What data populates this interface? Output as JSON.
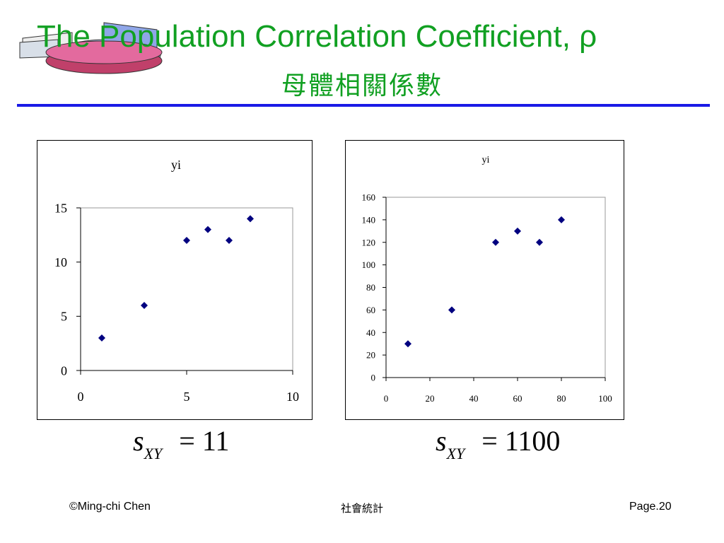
{
  "slide": {
    "title": "The Population Correlation Coefficient, ρ",
    "subtitle": "母體相關係數"
  },
  "formulas": {
    "left": {
      "symbol": "s",
      "subscript": "XY",
      "equals": "=",
      "value": "11"
    },
    "right": {
      "symbol": "s",
      "subscript": "XY",
      "equals": "=",
      "value": "1100"
    }
  },
  "footer": {
    "copyright": "©Ming-chi Chen",
    "course": "社會統計",
    "page": "Page.20"
  },
  "colors": {
    "title": "#11A022",
    "rule": "#1a1ae6",
    "marker": "#000080"
  },
  "chart_data": [
    {
      "type": "scatter",
      "title": "yi",
      "x": [
        1,
        3,
        5,
        6,
        7,
        8
      ],
      "y": [
        3,
        6,
        12,
        13,
        12,
        14
      ],
      "xlim": [
        0,
        10
      ],
      "ylim": [
        0,
        15
      ],
      "xticks": [
        0,
        5,
        10
      ],
      "yticks": [
        0,
        5,
        10,
        15
      ],
      "grid": false,
      "legend": "none"
    },
    {
      "type": "scatter",
      "title": "yi",
      "x": [
        10,
        30,
        50,
        60,
        70,
        80
      ],
      "y": [
        30,
        60,
        120,
        130,
        120,
        140
      ],
      "xlim": [
        0,
        100
      ],
      "ylim": [
        0,
        160
      ],
      "xticks": [
        0,
        20,
        40,
        60,
        80,
        100
      ],
      "yticks": [
        0,
        20,
        40,
        60,
        80,
        100,
        120,
        140,
        160
      ],
      "grid": false,
      "legend": "none"
    }
  ]
}
